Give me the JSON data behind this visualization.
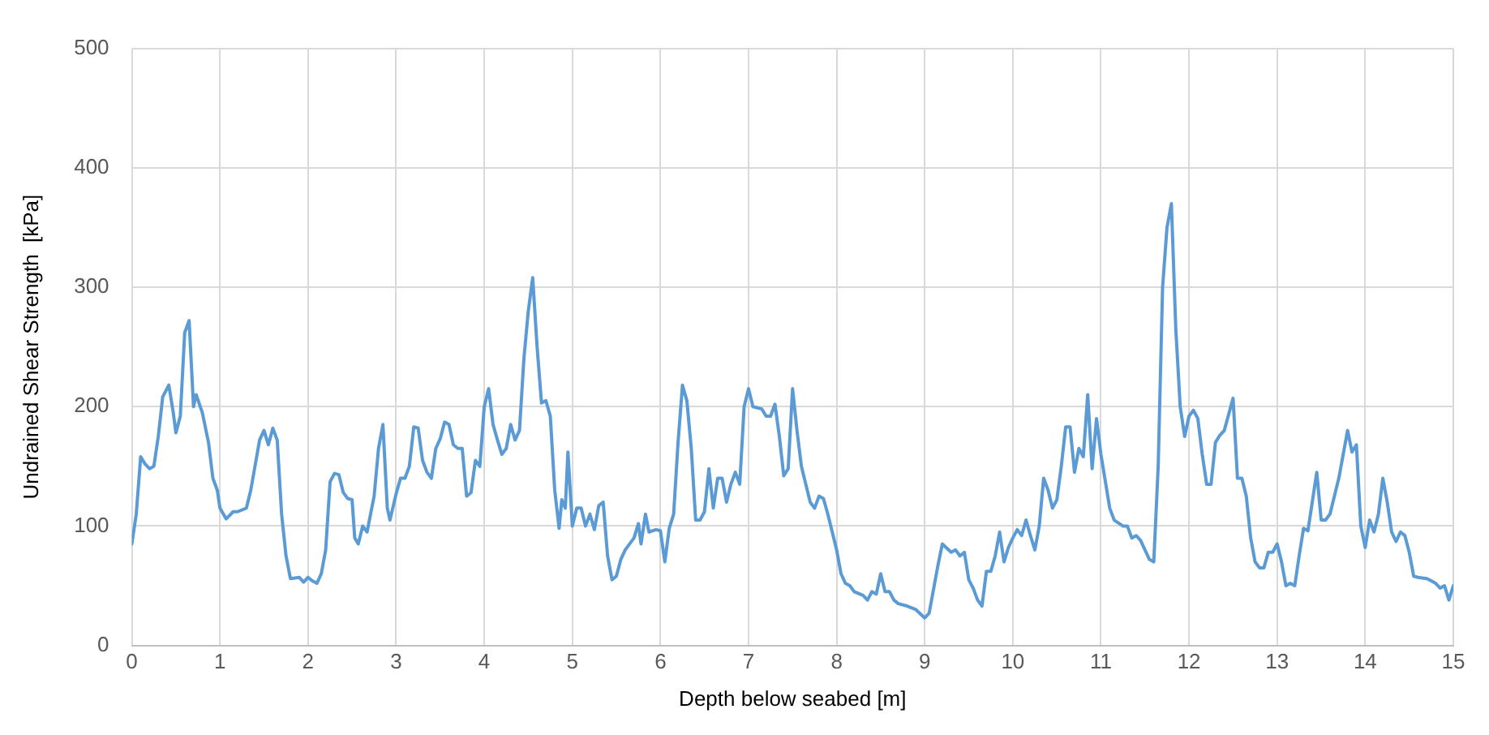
{
  "chart_data": {
    "type": "line",
    "xlabel": "Depth below seabed [m]",
    "ylabel": "Undrained Shear Strength  [kPa]",
    "xlim": [
      0,
      15
    ],
    "xticks": [
      0,
      1,
      2,
      3,
      4,
      5,
      6,
      7,
      8,
      9,
      10,
      11,
      12,
      13,
      14,
      15
    ],
    "ylim": [
      0,
      500
    ],
    "yticks": [
      0,
      100,
      200,
      300,
      400,
      500
    ],
    "grid": true,
    "legend": false,
    "marker": "none",
    "line_style": "solid",
    "series": [
      {
        "color": "#5b9bd5",
        "x": [
          0,
          0.05,
          0.1,
          0.15,
          0.2,
          0.25,
          0.3,
          0.35,
          0.42,
          0.47,
          0.5,
          0.55,
          0.6,
          0.65,
          0.7,
          0.73,
          0.8,
          0.87,
          0.92,
          0.97,
          1.0,
          1.07,
          1.15,
          1.2,
          1.3,
          1.35,
          1.45,
          1.5,
          1.55,
          1.6,
          1.65,
          1.7,
          1.75,
          1.8,
          1.9,
          1.95,
          2.0,
          2.05,
          2.1,
          2.15,
          2.2,
          2.25,
          2.3,
          2.35,
          2.4,
          2.45,
          2.5,
          2.53,
          2.57,
          2.62,
          2.67,
          2.75,
          2.8,
          2.85,
          2.9,
          2.93,
          3.0,
          3.05,
          3.1,
          3.15,
          3.2,
          3.25,
          3.3,
          3.35,
          3.4,
          3.45,
          3.5,
          3.55,
          3.6,
          3.65,
          3.7,
          3.75,
          3.8,
          3.85,
          3.9,
          3.95,
          4.0,
          4.05,
          4.1,
          4.15,
          4.2,
          4.25,
          4.3,
          4.35,
          4.4,
          4.45,
          4.5,
          4.55,
          4.6,
          4.65,
          4.7,
          4.75,
          4.8,
          4.85,
          4.88,
          4.92,
          4.95,
          5.0,
          5.05,
          5.1,
          5.15,
          5.2,
          5.25,
          5.3,
          5.35,
          5.4,
          5.45,
          5.5,
          5.55,
          5.6,
          5.7,
          5.75,
          5.78,
          5.83,
          5.87,
          5.95,
          6.0,
          6.05,
          6.1,
          6.15,
          6.2,
          6.25,
          6.3,
          6.35,
          6.4,
          6.45,
          6.5,
          6.55,
          6.6,
          6.65,
          6.7,
          6.75,
          6.8,
          6.85,
          6.9,
          6.95,
          7.0,
          7.05,
          7.15,
          7.2,
          7.25,
          7.3,
          7.35,
          7.4,
          7.45,
          7.5,
          7.55,
          7.6,
          7.65,
          7.7,
          7.75,
          7.8,
          7.85,
          7.9,
          8.0,
          8.05,
          8.1,
          8.15,
          8.2,
          8.3,
          8.35,
          8.4,
          8.45,
          8.5,
          8.55,
          8.6,
          8.65,
          8.7,
          8.8,
          8.9,
          9.0,
          9.05,
          9.15,
          9.2,
          9.3,
          9.35,
          9.4,
          9.45,
          9.5,
          9.55,
          9.6,
          9.65,
          9.7,
          9.75,
          9.8,
          9.85,
          9.9,
          9.95,
          10.0,
          10.05,
          10.1,
          10.15,
          10.2,
          10.25,
          10.3,
          10.35,
          10.4,
          10.45,
          10.5,
          10.55,
          10.6,
          10.65,
          10.7,
          10.75,
          10.8,
          10.85,
          10.9,
          10.95,
          11.0,
          11.1,
          11.15,
          11.25,
          11.3,
          11.35,
          11.4,
          11.45,
          11.5,
          11.55,
          11.6,
          11.65,
          11.7,
          11.75,
          11.8,
          11.85,
          11.9,
          11.95,
          12.0,
          12.05,
          12.1,
          12.15,
          12.2,
          12.25,
          12.3,
          12.35,
          12.4,
          12.5,
          12.55,
          12.6,
          12.65,
          12.7,
          12.75,
          12.8,
          12.85,
          12.9,
          12.95,
          13.0,
          13.05,
          13.1,
          13.15,
          13.2,
          13.25,
          13.3,
          13.35,
          13.45,
          13.5,
          13.55,
          13.6,
          13.7,
          13.8,
          13.85,
          13.9,
          13.95,
          14.0,
          14.05,
          14.1,
          14.15,
          14.2,
          14.25,
          14.3,
          14.35,
          14.4,
          14.45,
          14.5,
          14.55,
          14.6,
          14.7,
          14.75,
          14.8,
          14.85,
          14.9,
          14.95,
          15.0
        ],
        "values": [
          85,
          110,
          158,
          152,
          148,
          150,
          175,
          208,
          218,
          195,
          178,
          192,
          262,
          272,
          200,
          210,
          195,
          170,
          140,
          130,
          115,
          106,
          112,
          112,
          115,
          130,
          172,
          180,
          168,
          182,
          172,
          110,
          75,
          56,
          57,
          53,
          57,
          54,
          52,
          60,
          80,
          137,
          144,
          143,
          128,
          123,
          122,
          90,
          85,
          100,
          95,
          125,
          165,
          185,
          115,
          105,
          127,
          140,
          140,
          150,
          183,
          182,
          155,
          145,
          140,
          165,
          173,
          187,
          185,
          168,
          165,
          165,
          125,
          128,
          155,
          150,
          200,
          215,
          185,
          172,
          160,
          165,
          185,
          172,
          180,
          240,
          280,
          308,
          250,
          203,
          205,
          192,
          130,
          98,
          122,
          115,
          162,
          100,
          115,
          115,
          100,
          110,
          97,
          117,
          120,
          75,
          55,
          58,
          72,
          80,
          90,
          102,
          85,
          110,
          95,
          97,
          96,
          70,
          98,
          110,
          170,
          218,
          205,
          165,
          105,
          105,
          112,
          148,
          115,
          140,
          140,
          120,
          135,
          145,
          135,
          200,
          215,
          200,
          198,
          192,
          192,
          202,
          175,
          142,
          148,
          215,
          180,
          150,
          135,
          120,
          115,
          125,
          123,
          110,
          80,
          60,
          52,
          50,
          45,
          42,
          38,
          45,
          43,
          60,
          45,
          45,
          38,
          35,
          33,
          30,
          23,
          27,
          67,
          85,
          78,
          80,
          75,
          78,
          55,
          48,
          38,
          33,
          62,
          62,
          75,
          95,
          70,
          82,
          90,
          97,
          92,
          105,
          92,
          80,
          100,
          140,
          130,
          115,
          122,
          150,
          183,
          183,
          145,
          165,
          158,
          210,
          148,
          190,
          160,
          115,
          105,
          100,
          100,
          90,
          92,
          88,
          80,
          72,
          70,
          150,
          300,
          350,
          370,
          265,
          200,
          175,
          192,
          197,
          190,
          160,
          135,
          135,
          170,
          176,
          180,
          207,
          140,
          140,
          125,
          90,
          70,
          65,
          65,
          78,
          78,
          85,
          70,
          50,
          52,
          50,
          75,
          98,
          96,
          145,
          105,
          105,
          110,
          140,
          180,
          162,
          168,
          100,
          82,
          105,
          95,
          110,
          140,
          120,
          95,
          87,
          95,
          92,
          78,
          58,
          57,
          56,
          54,
          52,
          48,
          50,
          38,
          50
        ]
      }
    ]
  }
}
